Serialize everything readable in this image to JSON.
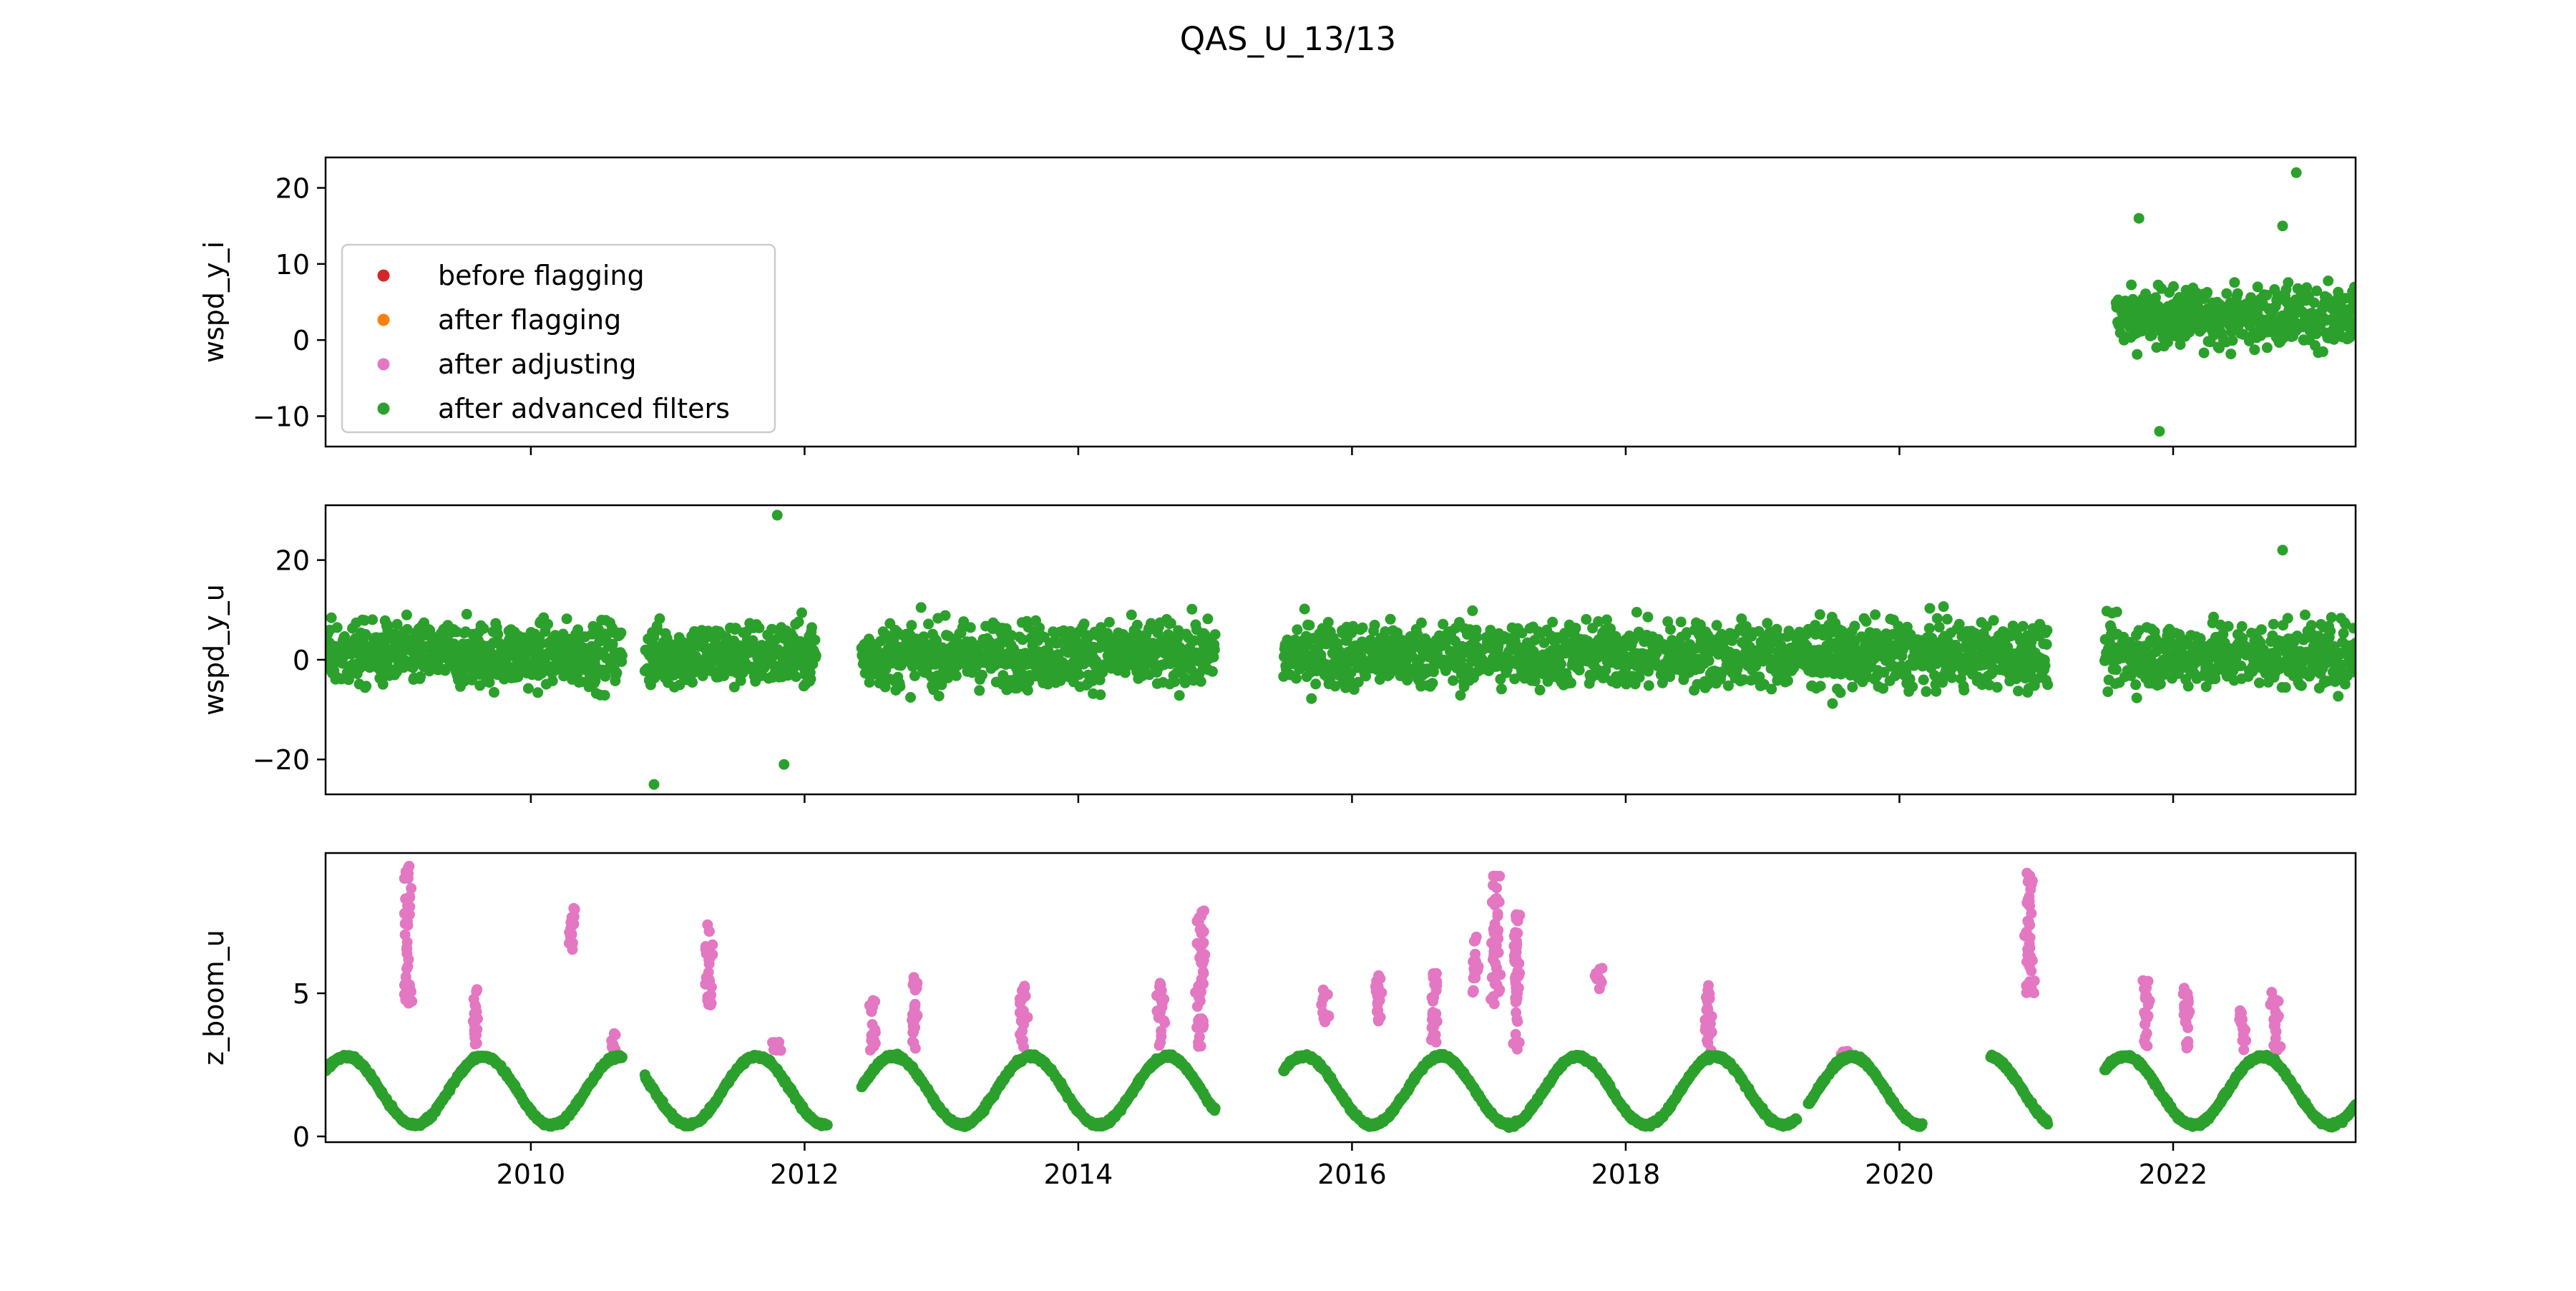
{
  "figure": {
    "title": "QAS_U_13/13"
  },
  "legend": {
    "placement": "center-left",
    "entries": [
      {
        "label": "before flagging",
        "color": "#d62728"
      },
      {
        "label": "after flagging",
        "color": "#ff7f0e"
      },
      {
        "label": "after adjusting",
        "color": "#e377c2"
      },
      {
        "label": "after advanced filters",
        "color": "#2ca02c"
      }
    ]
  },
  "chart_data": [
    {
      "type": "scatter",
      "ylabel": "wspd_y_i",
      "xlim": [
        "2008-07",
        "2023-05"
      ],
      "ylim": [
        -14,
        24
      ],
      "yticks": [
        -10,
        0,
        10,
        20
      ],
      "xticks_labeled": false,
      "series": [
        {
          "name": "after advanced filters",
          "color": "#2ca02c",
          "segments": [
            [
              "2021-08",
              "2023-05"
            ]
          ],
          "center": 3,
          "spread": 4,
          "outliers": [
            [
              2022.9,
              22
            ],
            [
              2021.9,
              -12
            ],
            [
              2021.75,
              16
            ],
            [
              2022.8,
              15
            ]
          ]
        }
      ]
    },
    {
      "type": "scatter",
      "ylabel": "wspd_y_u",
      "xlim": [
        "2008-07",
        "2023-05"
      ],
      "ylim": [
        -27,
        31
      ],
      "yticks": [
        -20,
        0,
        20
      ],
      "xticks_labeled": false,
      "series": [
        {
          "name": "after advanced filters",
          "color": "#2ca02c",
          "segments": [
            [
              "2008-07",
              "2010-09"
            ],
            [
              "2010-11",
              "2012-02"
            ],
            [
              "2012-06",
              "2015-01"
            ],
            [
              "2015-07",
              "2019-04"
            ],
            [
              "2019-04",
              "2021-02"
            ],
            [
              "2021-07",
              "2023-05"
            ]
          ],
          "center": 1,
          "spread": 7,
          "outliers": [
            [
              2011.8,
              29
            ],
            [
              2010.9,
              -25
            ],
            [
              2011.85,
              -21
            ],
            [
              2022.8,
              22
            ]
          ]
        }
      ]
    },
    {
      "type": "scatter",
      "ylabel": "z_boom_u",
      "xlim": [
        "2008-07",
        "2023-05"
      ],
      "ylim": [
        -0.2,
        9.9
      ],
      "yticks": [
        0,
        5
      ],
      "xticks": [
        "2010",
        "2012",
        "2014",
        "2016",
        "2018",
        "2020",
        "2022"
      ],
      "series": [
        {
          "name": "after adjusting",
          "color": "#e377c2",
          "clusters": [
            [
              2009.1,
              4.5,
              9.5
            ],
            [
              2009.6,
              3.2,
              5.2
            ],
            [
              2010.6,
              3.0,
              3.6
            ],
            [
              2010.3,
              6.5,
              8.0
            ],
            [
              2011.3,
              4.5,
              7.5
            ],
            [
              2011.8,
              3.0,
              3.3
            ],
            [
              2012.5,
              3.0,
              4.8
            ],
            [
              2012.8,
              3.0,
              5.6
            ],
            [
              2013.6,
              3.0,
              5.3
            ],
            [
              2014.6,
              3.0,
              5.4
            ],
            [
              2014.9,
              3.0,
              8.0
            ],
            [
              2015.8,
              4.0,
              5.2
            ],
            [
              2016.2,
              4.0,
              5.8
            ],
            [
              2016.6,
              3.2,
              5.8
            ],
            [
              2016.9,
              5.0,
              7.0
            ],
            [
              2017.05,
              4.5,
              9.2
            ],
            [
              2017.2,
              3.0,
              7.8
            ],
            [
              2017.8,
              5.0,
              5.9
            ],
            [
              2018.6,
              3.0,
              5.3
            ],
            [
              2019.6,
              2.7,
              3.0
            ],
            [
              2020.95,
              5.0,
              9.2
            ],
            [
              2021.8,
              3.0,
              5.5
            ],
            [
              2022.1,
              3.0,
              5.2
            ],
            [
              2022.5,
              3.0,
              4.5
            ],
            [
              2022.75,
              3.0,
              5.2
            ]
          ]
        },
        {
          "name": "after advanced filters",
          "color": "#2ca02c",
          "segments": [
            [
              "2008-07",
              "2010-09"
            ],
            [
              "2010-11",
              "2012-03"
            ],
            [
              "2012-06",
              "2015-01"
            ],
            [
              "2015-07",
              "2019-04"
            ],
            [
              "2019-05",
              "2020-03"
            ],
            [
              "2020-09",
              "2021-02"
            ],
            [
              "2021-07",
              "2023-05"
            ]
          ],
          "seasonal_min": 0.4,
          "seasonal_max": 2.8
        }
      ]
    }
  ]
}
